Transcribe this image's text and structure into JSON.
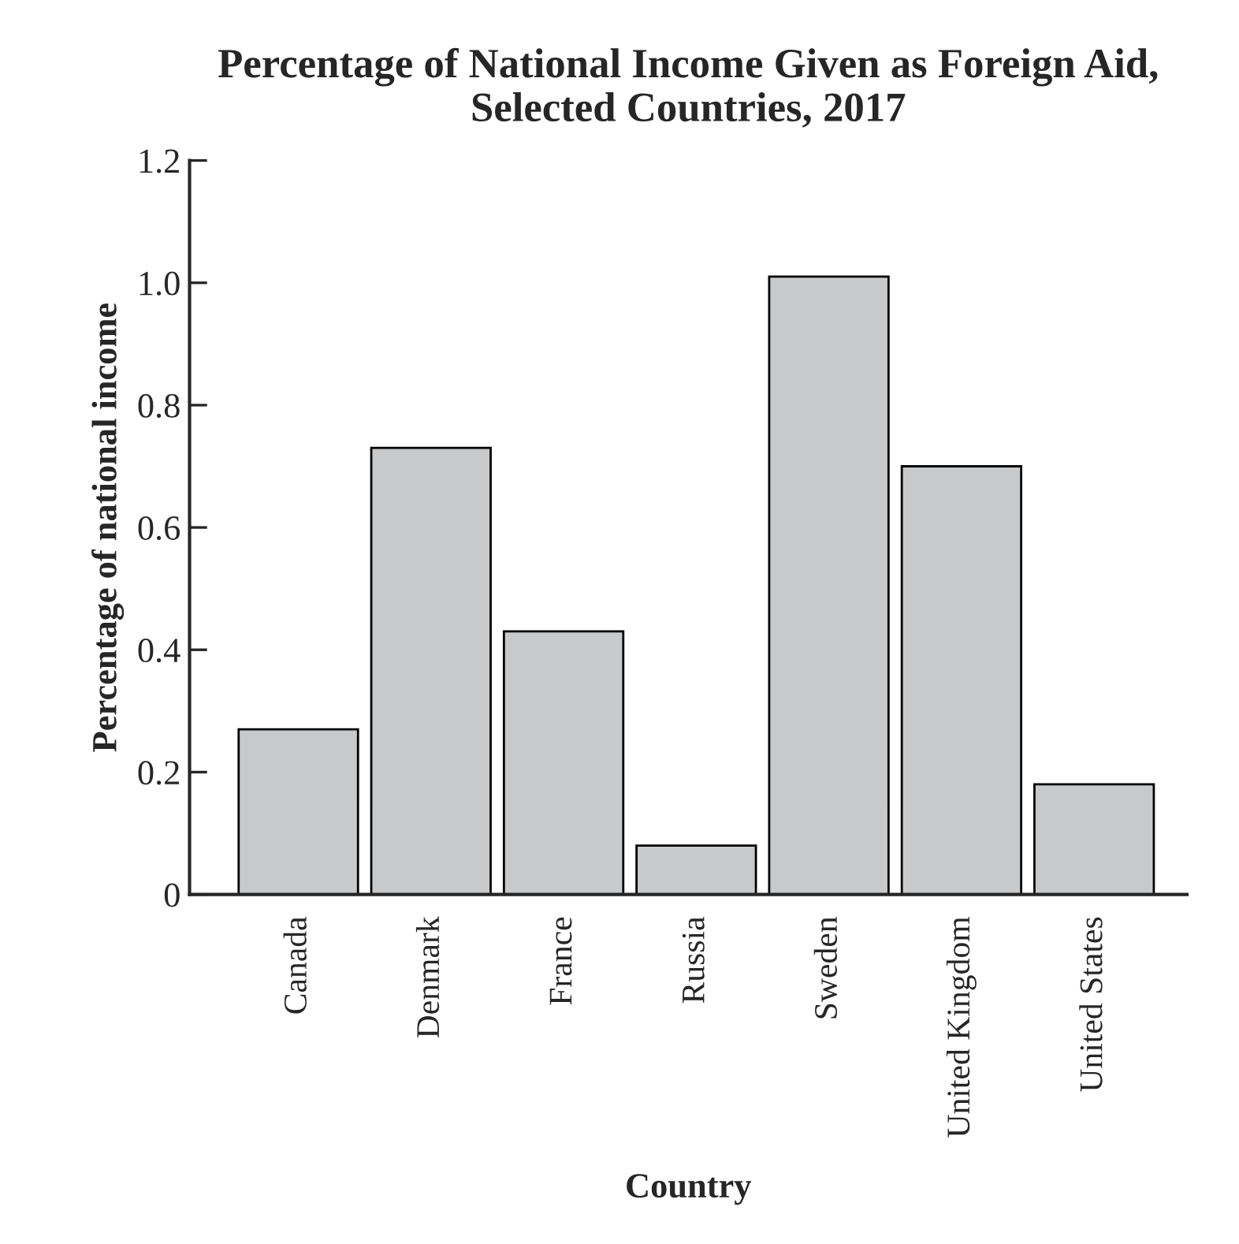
{
  "chart_data": {
    "type": "bar",
    "title": "Percentage of National Income Given as Foreign Aid,\nSelected Countries, 2017",
    "xlabel": "Country",
    "ylabel": "Percentage of national income",
    "categories": [
      "Canada",
      "Denmark",
      "France",
      "Russia",
      "Sweden",
      "United Kingdom",
      "United States"
    ],
    "values": [
      0.27,
      0.73,
      0.43,
      0.08,
      1.01,
      0.7,
      0.18
    ],
    "color": "#c8c9cb",
    "ylim": [
      0,
      1.2
    ],
    "yticks": [
      0,
      {
        "value": 0.2,
        "label": "0.2"
      },
      {
        "value": 0.4,
        "label": "0.4"
      },
      {
        "value": 0.6,
        "label": "0.6"
      },
      {
        "value": 0.8,
        "label": "0.8"
      },
      {
        "value": 1.0,
        "label": "1.0"
      },
      {
        "value": 1.2,
        "label": "1.2"
      }
    ],
    "grid": false,
    "legend": false
  }
}
